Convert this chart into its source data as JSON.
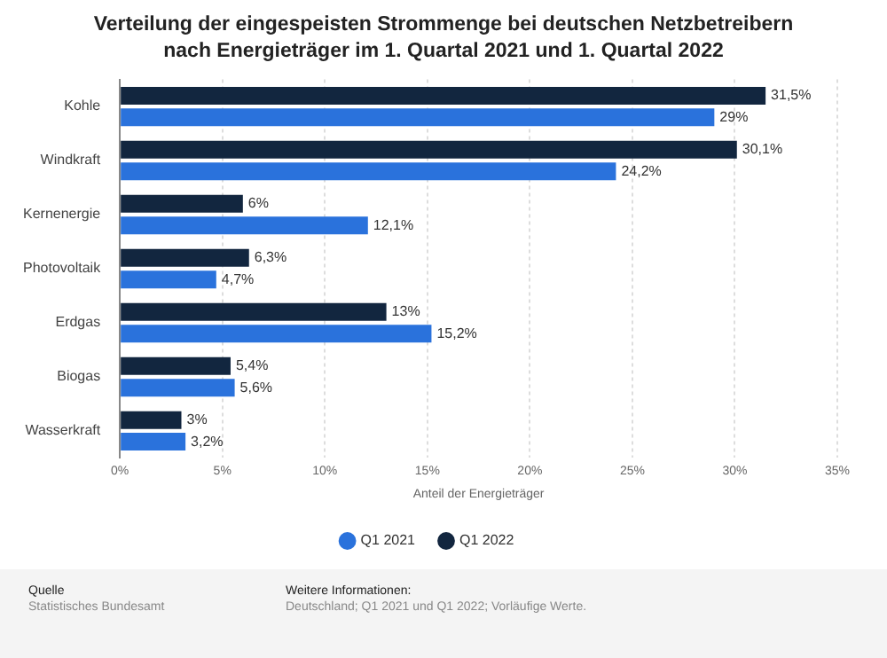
{
  "chart_data": {
    "type": "bar",
    "orientation": "horizontal",
    "title": "Verteilung der eingespeisten Strommenge bei deutschen Netzbetreibern nach Energieträger im 1. Quartal 2021 und 1. Quartal 2022",
    "xlabel": "Anteil der Energieträger",
    "categories": [
      "Kohle",
      "Windkraft",
      "Kernenergie",
      "Photovoltaik",
      "Erdgas",
      "Biogas",
      "Wasserkraft"
    ],
    "series": [
      {
        "name": "Q1 2021",
        "color": "#2a72dc",
        "values": [
          29,
          24.2,
          12.1,
          4.7,
          15.2,
          5.6,
          3.2
        ],
        "value_labels": [
          "29%",
          "24,2%",
          "12,1%",
          "4,7%",
          "15,2%",
          "5,6%",
          "3,2%"
        ]
      },
      {
        "name": "Q1 2022",
        "color": "#12263f",
        "values": [
          31.5,
          30.1,
          6,
          6.3,
          13,
          5.4,
          3
        ],
        "value_labels": [
          "31,5%",
          "30,1%",
          "6%",
          "6,3%",
          "13%",
          "5,4%",
          "3%"
        ]
      }
    ],
    "xlim": [
      0,
      35
    ],
    "xticks": [
      {
        "value": 0,
        "label": "0%"
      },
      {
        "value": 5,
        "label": "5%"
      },
      {
        "value": 10,
        "label": "10%"
      },
      {
        "value": 15,
        "label": "15%"
      },
      {
        "value": 20,
        "label": "20%"
      },
      {
        "value": 25,
        "label": "25%"
      },
      {
        "value": 30,
        "label": "30%"
      },
      {
        "value": 35,
        "label": "35%"
      }
    ],
    "grid": "x",
    "legend": "bottom",
    "annotations": [
      "Quelle",
      "Statistisches Bundesamt",
      "Weitere Informationen:",
      "Deutschland; Q1 2021 und Q1 2022; Vorläufige Werte."
    ]
  }
}
